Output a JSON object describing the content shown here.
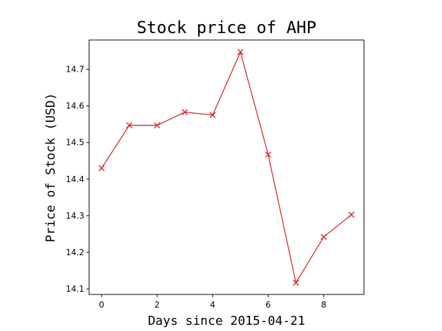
{
  "chart_data": {
    "type": "line",
    "title": "Stock price of AHP",
    "xlabel": "Days since 2015-04-21",
    "ylabel": "Price of Stock (USD)",
    "x": [
      0,
      1,
      2,
      3,
      4,
      5,
      6,
      7,
      8,
      9
    ],
    "series": [
      {
        "values": [
          14.43,
          14.547,
          14.547,
          14.583,
          14.575,
          14.747,
          14.467,
          14.117,
          14.242,
          14.303
        ],
        "color": "#d62728",
        "marker": "x"
      }
    ],
    "xlim": [
      -0.45,
      9.45
    ],
    "ylim": [
      14.085,
      14.78
    ],
    "xticks": [
      0,
      2,
      4,
      6,
      8
    ],
    "xtick_labels": [
      "0",
      "2",
      "4",
      "6",
      "8"
    ],
    "yticks": [
      14.1,
      14.2,
      14.3,
      14.4,
      14.5,
      14.6,
      14.7
    ],
    "ytick_labels": [
      "14.1",
      "14.2",
      "14.3",
      "14.4",
      "14.5",
      "14.6",
      "14.7"
    ],
    "grid": false,
    "legend": "none"
  }
}
